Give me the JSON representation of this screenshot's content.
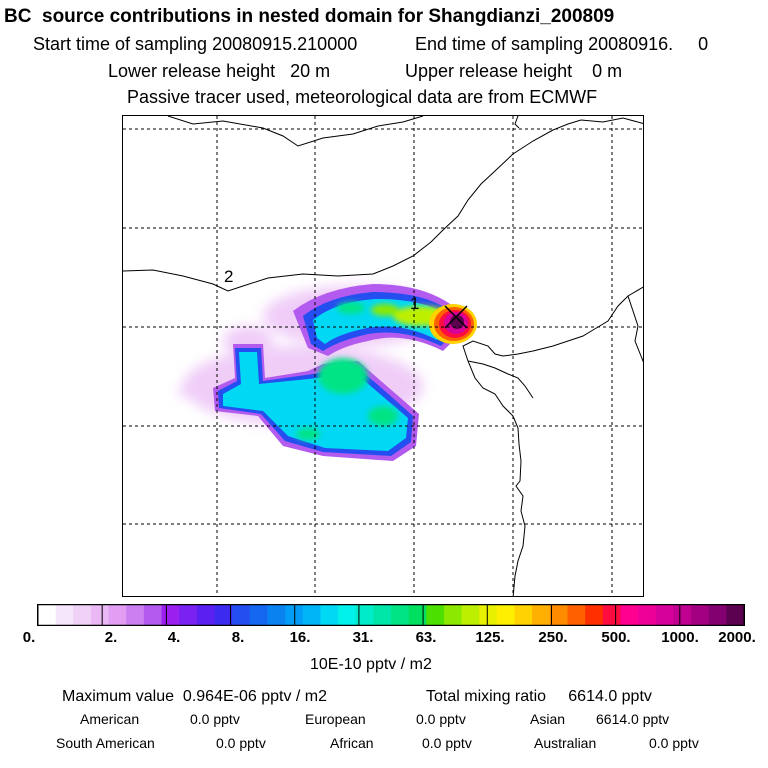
{
  "header": {
    "title": "BC  source contributions in nested domain for Shangdianzi_200809",
    "start_time": "Start time of sampling 20080915.210000",
    "end_time": "End time of sampling 20080916.     0",
    "lower_height": "Lower release height   20 m",
    "upper_height": "Upper release height    0 m",
    "tracer_note": "Passive tracer used, meteorological data are from ECMWF"
  },
  "map": {
    "labels": [
      "1",
      "2"
    ],
    "receptor_marker": "x-marker-icon"
  },
  "colorbar": {
    "colors": [
      "#ffffff",
      "#f6e6fb",
      "#f0d2f8",
      "#e9b8f5",
      "#e19ef2",
      "#cb7ff0",
      "#b35bee",
      "#9b1fee",
      "#7a22f2",
      "#5b1ff2",
      "#3d2af0",
      "#244ef0",
      "#1468f0",
      "#0a82f0",
      "#009cf5",
      "#00b4f8",
      "#00d8f4",
      "#00f2ea",
      "#00ecc8",
      "#00e6a8",
      "#00e486",
      "#00e060",
      "#4ce000",
      "#8ce800",
      "#bdf000",
      "#e8f000",
      "#fff000",
      "#ffd200",
      "#ffb000",
      "#ff8c00",
      "#ff6000",
      "#ff3000",
      "#ff0c40",
      "#ff0090",
      "#ee0098",
      "#d6009a",
      "#c00090",
      "#a20080",
      "#820070",
      "#5c0050"
    ],
    "ticks": [
      "0.",
      "2.",
      "4.",
      "8.",
      "16.",
      "31.",
      "63.",
      "125.",
      "250.",
      "500.",
      "1000.",
      "2000."
    ],
    "unit": "10E-10 pptv / m2"
  },
  "footer": {
    "max_value": "Maximum value  0.964E-06 pptv / m2",
    "total_mixing": "Total mixing ratio     6614.0 pptv",
    "regions": [
      {
        "name": "American",
        "value": "0.0 pptv"
      },
      {
        "name": "European",
        "value": "0.0 pptv"
      },
      {
        "name": "Asian",
        "value": "6614.0 pptv"
      },
      {
        "name": "South American",
        "value": "0.0 pptv"
      },
      {
        "name": "African",
        "value": "0.0 pptv"
      },
      {
        "name": "Australian",
        "value": "0.0 pptv"
      }
    ]
  }
}
